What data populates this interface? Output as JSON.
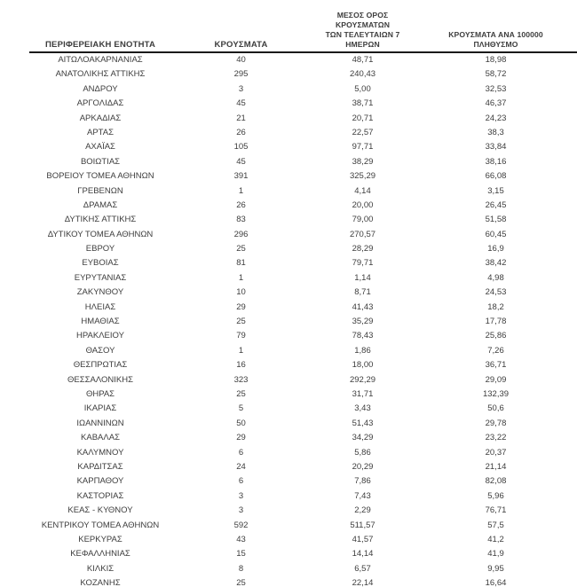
{
  "colors": {
    "background": "#ffffff",
    "text": "#3d3d3d",
    "rule": "#1a1a1a"
  },
  "table": {
    "headers": {
      "col1": "ΠΕΡΙΦΕΡΕΙΑΚΗ ΕΝΟΤΗΤΑ",
      "col2": "ΚΡΟΥΣΜΑΤΑ",
      "col3_line1": "ΜΕΣΟΣ ΟΡΟΣ ΚΡΟΥΣΜΑΤΩΝ",
      "col3_line2": "ΤΩΝ ΤΕΛΕΥΤΑΙΩΝ 7 ΗΜΕΡΩΝ",
      "col4_line1": "ΚΡΟΥΣΜΑΤΑ ΑΝΑ 100000",
      "col4_line2": "ΠΛΗΘΥΣΜΟ"
    },
    "rows": [
      {
        "region": "ΑΙΤΩΛΟΑΚΑΡΝΑΝΙΑΣ",
        "cases": "40",
        "avg7": "48,71",
        "per100k": "18,98"
      },
      {
        "region": "ΑΝΑΤΟΛΙΚΗΣ ΑΤΤΙΚΗΣ",
        "cases": "295",
        "avg7": "240,43",
        "per100k": "58,72"
      },
      {
        "region": "ΑΝΔΡΟΥ",
        "cases": "3",
        "avg7": "5,00",
        "per100k": "32,53"
      },
      {
        "region": "ΑΡΓΟΛΙΔΑΣ",
        "cases": "45",
        "avg7": "38,71",
        "per100k": "46,37"
      },
      {
        "region": "ΑΡΚΑΔΙΑΣ",
        "cases": "21",
        "avg7": "20,71",
        "per100k": "24,23"
      },
      {
        "region": "ΑΡΤΑΣ",
        "cases": "26",
        "avg7": "22,57",
        "per100k": "38,3"
      },
      {
        "region": "ΑΧΑΪΑΣ",
        "cases": "105",
        "avg7": "97,71",
        "per100k": "33,84"
      },
      {
        "region": "ΒΟΙΩΤΙΑΣ",
        "cases": "45",
        "avg7": "38,29",
        "per100k": "38,16"
      },
      {
        "region": "ΒΟΡΕΙΟΥ ΤΟΜΕΑ ΑΘΗΝΩΝ",
        "cases": "391",
        "avg7": "325,29",
        "per100k": "66,08"
      },
      {
        "region": "ΓΡΕΒΕΝΩΝ",
        "cases": "1",
        "avg7": "4,14",
        "per100k": "3,15"
      },
      {
        "region": "ΔΡΑΜΑΣ",
        "cases": "26",
        "avg7": "20,00",
        "per100k": "26,45"
      },
      {
        "region": "ΔΥΤΙΚΗΣ ΑΤΤΙΚΗΣ",
        "cases": "83",
        "avg7": "79,00",
        "per100k": "51,58"
      },
      {
        "region": "ΔΥΤΙΚΟΥ ΤΟΜΕΑ ΑΘΗΝΩΝ",
        "cases": "296",
        "avg7": "270,57",
        "per100k": "60,45"
      },
      {
        "region": "ΕΒΡΟΥ",
        "cases": "25",
        "avg7": "28,29",
        "per100k": "16,9"
      },
      {
        "region": "ΕΥΒΟΙΑΣ",
        "cases": "81",
        "avg7": "79,71",
        "per100k": "38,42"
      },
      {
        "region": "ΕΥΡΥΤΑΝΙΑΣ",
        "cases": "1",
        "avg7": "1,14",
        "per100k": "4,98"
      },
      {
        "region": "ΖΑΚΥΝΘΟΥ",
        "cases": "10",
        "avg7": "8,71",
        "per100k": "24,53"
      },
      {
        "region": "ΗΛΕΙΑΣ",
        "cases": "29",
        "avg7": "41,43",
        "per100k": "18,2"
      },
      {
        "region": "ΗΜΑΘΙΑΣ",
        "cases": "25",
        "avg7": "35,29",
        "per100k": "17,78"
      },
      {
        "region": "ΗΡΑΚΛΕΙΟΥ",
        "cases": "79",
        "avg7": "78,43",
        "per100k": "25,86"
      },
      {
        "region": "ΘΑΣΟΥ",
        "cases": "1",
        "avg7": "1,86",
        "per100k": "7,26"
      },
      {
        "region": "ΘΕΣΠΡΩΤΙΑΣ",
        "cases": "16",
        "avg7": "18,00",
        "per100k": "36,71"
      },
      {
        "region": "ΘΕΣΣΑΛΟΝΙΚΗΣ",
        "cases": "323",
        "avg7": "292,29",
        "per100k": "29,09"
      },
      {
        "region": "ΘΗΡΑΣ",
        "cases": "25",
        "avg7": "31,71",
        "per100k": "132,39"
      },
      {
        "region": "ΙΚΑΡΙΑΣ",
        "cases": "5",
        "avg7": "3,43",
        "per100k": "50,6"
      },
      {
        "region": "ΙΩΑΝΝΙΝΩΝ",
        "cases": "50",
        "avg7": "51,43",
        "per100k": "29,78"
      },
      {
        "region": "ΚΑΒΑΛΑΣ",
        "cases": "29",
        "avg7": "34,29",
        "per100k": "23,22"
      },
      {
        "region": "ΚΑΛΥΜΝΟΥ",
        "cases": "6",
        "avg7": "5,86",
        "per100k": "20,37"
      },
      {
        "region": "ΚΑΡΔΙΤΣΑΣ",
        "cases": "24",
        "avg7": "20,29",
        "per100k": "21,14"
      },
      {
        "region": "ΚΑΡΠΑΘΟΥ",
        "cases": "6",
        "avg7": "7,86",
        "per100k": "82,08"
      },
      {
        "region": "ΚΑΣΤΟΡΙΑΣ",
        "cases": "3",
        "avg7": "7,43",
        "per100k": "5,96"
      },
      {
        "region": "ΚΕΑΣ - ΚΥΘΝΟΥ",
        "cases": "3",
        "avg7": "2,29",
        "per100k": "76,71"
      },
      {
        "region": "ΚΕΝΤΡΙΚΟΥ ΤΟΜΕΑ ΑΘΗΝΩΝ",
        "cases": "592",
        "avg7": "511,57",
        "per100k": "57,5"
      },
      {
        "region": "ΚΕΡΚΥΡΑΣ",
        "cases": "43",
        "avg7": "41,57",
        "per100k": "41,2"
      },
      {
        "region": "ΚΕΦΑΛΛΗΝΙΑΣ",
        "cases": "15",
        "avg7": "14,14",
        "per100k": "41,9"
      },
      {
        "region": "ΚΙΛΚΙΣ",
        "cases": "8",
        "avg7": "6,57",
        "per100k": "9,95"
      },
      {
        "region": "ΚΟΖΑΝΗΣ",
        "cases": "25",
        "avg7": "22,14",
        "per100k": "16,64"
      }
    ]
  }
}
